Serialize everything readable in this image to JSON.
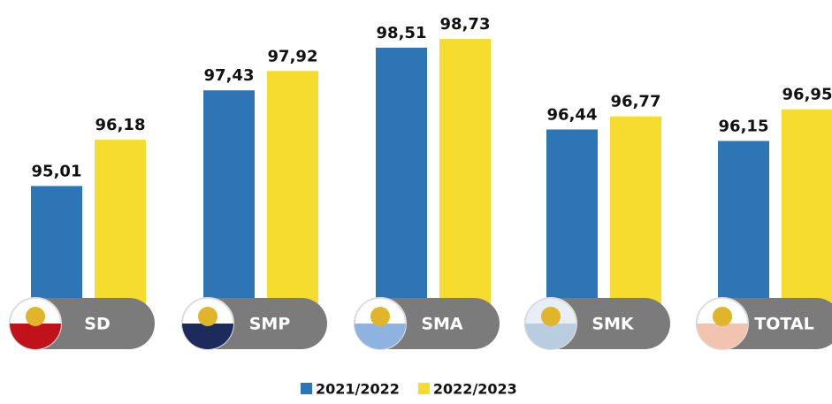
{
  "chart_data": {
    "type": "bar",
    "categories": [
      "SD",
      "SMP",
      "SMA",
      "SMK",
      "TOTAL"
    ],
    "ylim": [
      92,
      99
    ],
    "series": [
      {
        "name": "2021/2022",
        "color": "#2e75b6",
        "values": [
          95.01,
          97.43,
          98.51,
          96.44,
          96.15
        ],
        "value_labels": [
          "95,01",
          "97,43",
          "98,51",
          "96,44",
          "96,15"
        ]
      },
      {
        "name": "2022/2023",
        "color": "#f5dc2e",
        "values": [
          96.18,
          97.92,
          98.73,
          96.77,
          96.95
        ],
        "value_labels": [
          "96,18",
          "97,92",
          "98,73",
          "96,77",
          "96,95"
        ]
      }
    ]
  }
}
